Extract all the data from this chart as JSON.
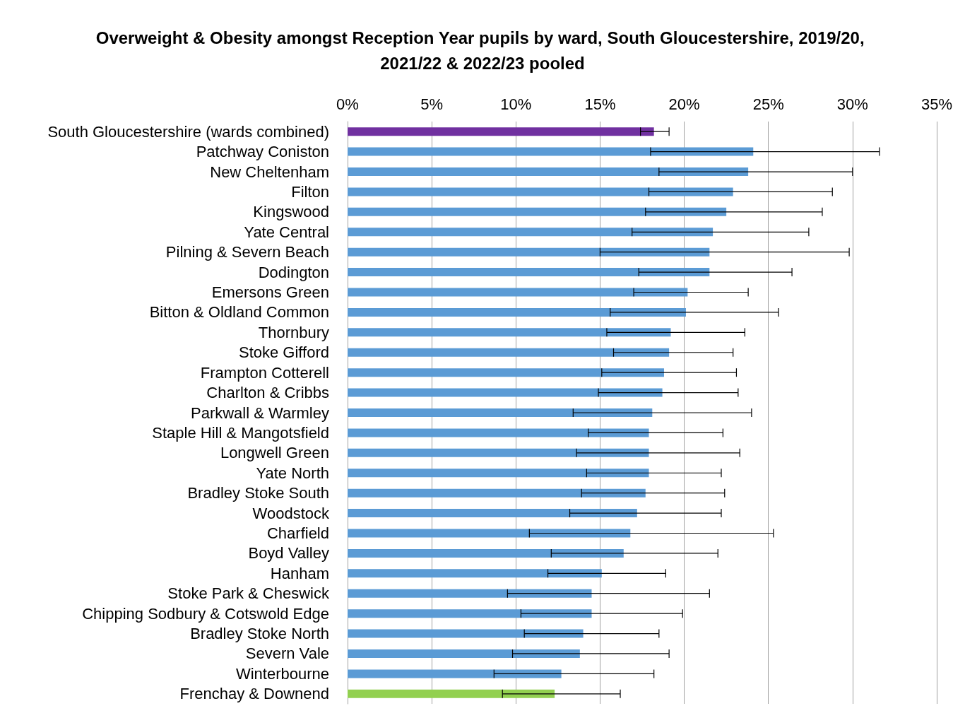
{
  "chart_data": {
    "type": "bar",
    "orientation": "horizontal",
    "title": "Overweight & Obesity amongst Reception Year pupils by ward, South Gloucestershire, 2019/20, 2021/22 & 2022/23 pooled",
    "categories": [
      "South Gloucestershire (wards combined)",
      "Patchway Coniston",
      "New Cheltenham",
      "Filton",
      "Kingswood",
      "Yate Central",
      "Pilning & Severn Beach",
      "Dodington",
      "Emersons Green",
      "Bitton & Oldland Common",
      "Thornbury",
      "Stoke Gifford",
      "Frampton Cotterell",
      "Charlton & Cribbs",
      "Parkwall & Warmley",
      "Staple Hill & Mangotsfield",
      "Longwell Green",
      "Yate North",
      "Bradley Stoke South",
      "Woodstock",
      "Charfield",
      "Boyd Valley",
      "Hanham",
      "Stoke Park & Cheswick",
      "Chipping Sodbury & Cotswold Edge",
      "Bradley Stoke North",
      "Severn Vale",
      "Winterbourne",
      "Frenchay & Downend"
    ],
    "values": [
      18.2,
      24.1,
      23.8,
      22.9,
      22.5,
      21.7,
      21.5,
      21.5,
      20.2,
      20.1,
      19.2,
      19.1,
      18.8,
      18.7,
      18.1,
      17.9,
      17.9,
      17.9,
      17.7,
      17.2,
      16.8,
      16.4,
      15.1,
      14.5,
      14.5,
      14.0,
      13.8,
      12.7,
      12.3
    ],
    "colors": [
      "#7030a0",
      "#5b9bd5",
      "#5b9bd5",
      "#5b9bd5",
      "#5b9bd5",
      "#5b9bd5",
      "#5b9bd5",
      "#5b9bd5",
      "#5b9bd5",
      "#5b9bd5",
      "#5b9bd5",
      "#5b9bd5",
      "#5b9bd5",
      "#5b9bd5",
      "#5b9bd5",
      "#5b9bd5",
      "#5b9bd5",
      "#5b9bd5",
      "#5b9bd5",
      "#5b9bd5",
      "#5b9bd5",
      "#5b9bd5",
      "#5b9bd5",
      "#5b9bd5",
      "#5b9bd5",
      "#5b9bd5",
      "#5b9bd5",
      "#5b9bd5",
      "#92d050"
    ],
    "errors": [
      [
        17.4,
        19.1
      ],
      [
        18.0,
        31.6
      ],
      [
        18.5,
        30.0
      ],
      [
        17.9,
        28.8
      ],
      [
        17.7,
        28.2
      ],
      [
        16.9,
        27.4
      ],
      [
        15.0,
        29.8
      ],
      [
        17.3,
        26.4
      ],
      [
        17.0,
        23.8
      ],
      [
        15.6,
        25.6
      ],
      [
        15.4,
        23.6
      ],
      [
        15.8,
        22.9
      ],
      [
        15.1,
        23.1
      ],
      [
        14.9,
        23.2
      ],
      [
        13.4,
        24.0
      ],
      [
        14.3,
        22.3
      ],
      [
        13.6,
        23.3
      ],
      [
        14.2,
        22.2
      ],
      [
        13.9,
        22.4
      ],
      [
        13.2,
        22.2
      ],
      [
        10.8,
        25.3
      ],
      [
        12.1,
        22.0
      ],
      [
        11.9,
        18.9
      ],
      [
        9.5,
        21.5
      ],
      [
        10.3,
        19.9
      ],
      [
        10.5,
        18.5
      ],
      [
        9.8,
        19.1
      ],
      [
        8.7,
        18.2
      ],
      [
        9.2,
        16.2
      ]
    ],
    "xlim": [
      0,
      35
    ],
    "xticks": [
      {
        "value": 0,
        "label": "0%"
      },
      {
        "value": 5,
        "label": "5%"
      },
      {
        "value": 10,
        "label": "10%"
      },
      {
        "value": 15,
        "label": "15%"
      },
      {
        "value": 20,
        "label": "20%"
      },
      {
        "value": 25,
        "label": "25%"
      },
      {
        "value": 30,
        "label": "30%"
      },
      {
        "value": 35,
        "label": "35%"
      }
    ],
    "grid": "x"
  }
}
